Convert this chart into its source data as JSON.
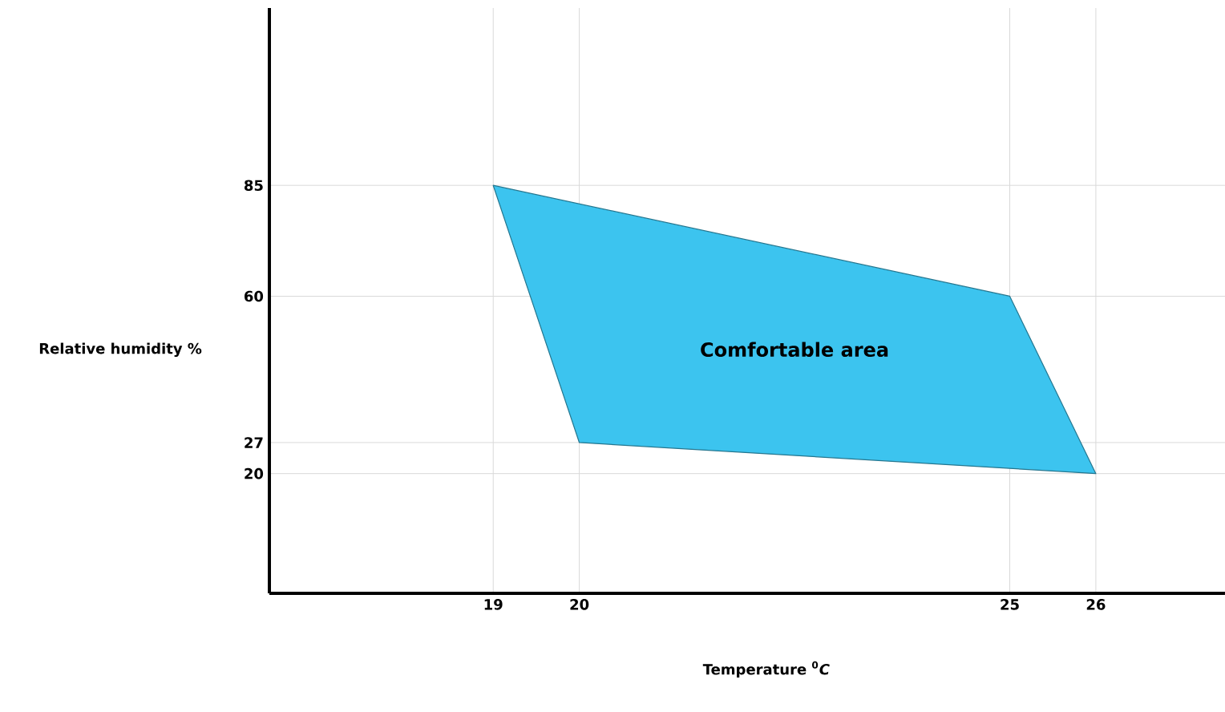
{
  "chart_data": {
    "type": "area",
    "xlabel": "Temperature $^{0}$*C*",
    "ylabel": "Relative humidity %",
    "series": [
      {
        "color": "#3cc4ef",
        "x": [
          19,
          25,
          26,
          20
        ],
        "values": [
          85,
          60,
          20,
          27
        ]
      }
    ],
    "xlim": [
      16.4,
      27.5
    ],
    "ylim": [
      -7,
      125
    ],
    "xticks": [
      19,
      20,
      25,
      26
    ],
    "yticks": [
      20,
      27,
      60,
      85
    ],
    "grid": true,
    "annotations": [
      "Comfortable area"
    ]
  }
}
